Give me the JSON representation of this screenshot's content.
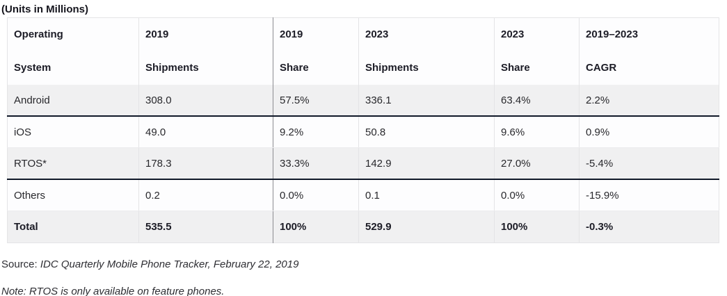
{
  "title": "(Units in Millions)",
  "table": {
    "headers": [
      {
        "line1": "Operating",
        "line2": "System"
      },
      {
        "line1": "2019",
        "line2": "Shipments"
      },
      {
        "line1": "2019",
        "line2": "Share"
      },
      {
        "line1": "2023",
        "line2": "Shipments"
      },
      {
        "line1": "2023",
        "line2": "Share"
      },
      {
        "line1": "2019–2023",
        "line2": "CAGR"
      }
    ],
    "rows": [
      {
        "os": "Android",
        "shipments_2019": "308.0",
        "share_2019": "57.5%",
        "shipments_2023": "336.1",
        "share_2023": "63.4%",
        "cagr": "2.2%"
      },
      {
        "os": "iOS",
        "shipments_2019": "49.0",
        "share_2019": "9.2%",
        "shipments_2023": "50.8",
        "share_2023": "9.6%",
        "cagr": "0.9%"
      },
      {
        "os": "RTOS*",
        "shipments_2019": "178.3",
        "share_2019": "33.3%",
        "shipments_2023": "142.9",
        "share_2023": "27.0%",
        "cagr": "-5.4%"
      },
      {
        "os": "Others",
        "shipments_2019": "0.2",
        "share_2019": "0.0%",
        "shipments_2023": "0.1",
        "share_2023": "0.0%",
        "cagr": "-15.9%"
      },
      {
        "os": "Total",
        "shipments_2019": "535.5",
        "share_2019": "100%",
        "shipments_2023": "529.9",
        "share_2023": "100%",
        "cagr": "-0.3%"
      }
    ]
  },
  "footer": {
    "source_label": "Source: ",
    "source_text": "IDC Quarterly Mobile Phone Tracker, February 22, 2019",
    "note_text": "Note: RTOS is only available on feature phones."
  },
  "colors": {
    "row_shaded_bg": "#f0f0f1",
    "row_plain_bg": "#fdfdfe",
    "dark_rule": "#101828",
    "light_rule": "#e4e4e6",
    "column_divider": "#8b8b90",
    "text": "#28282c"
  },
  "chart_data": {
    "type": "table",
    "title": "(Units in Millions)",
    "columns": [
      "Operating System",
      "2019 Shipments",
      "2019 Share",
      "2023 Shipments",
      "2023 Share",
      "2019–2023 CAGR"
    ],
    "rows": [
      [
        "Android",
        308.0,
        "57.5%",
        336.1,
        "63.4%",
        "2.2%"
      ],
      [
        "iOS",
        49.0,
        "9.2%",
        50.8,
        "9.6%",
        "0.9%"
      ],
      [
        "RTOS*",
        178.3,
        "33.3%",
        142.9,
        "27.0%",
        "-5.4%"
      ],
      [
        "Others",
        0.2,
        "0.0%",
        0.1,
        "0.0%",
        "-15.9%"
      ],
      [
        "Total",
        535.5,
        "100%",
        529.9,
        "100%",
        "-0.3%"
      ]
    ],
    "source": "IDC Quarterly Mobile Phone Tracker, February 22, 2019",
    "note": "RTOS is only available on feature phones."
  }
}
